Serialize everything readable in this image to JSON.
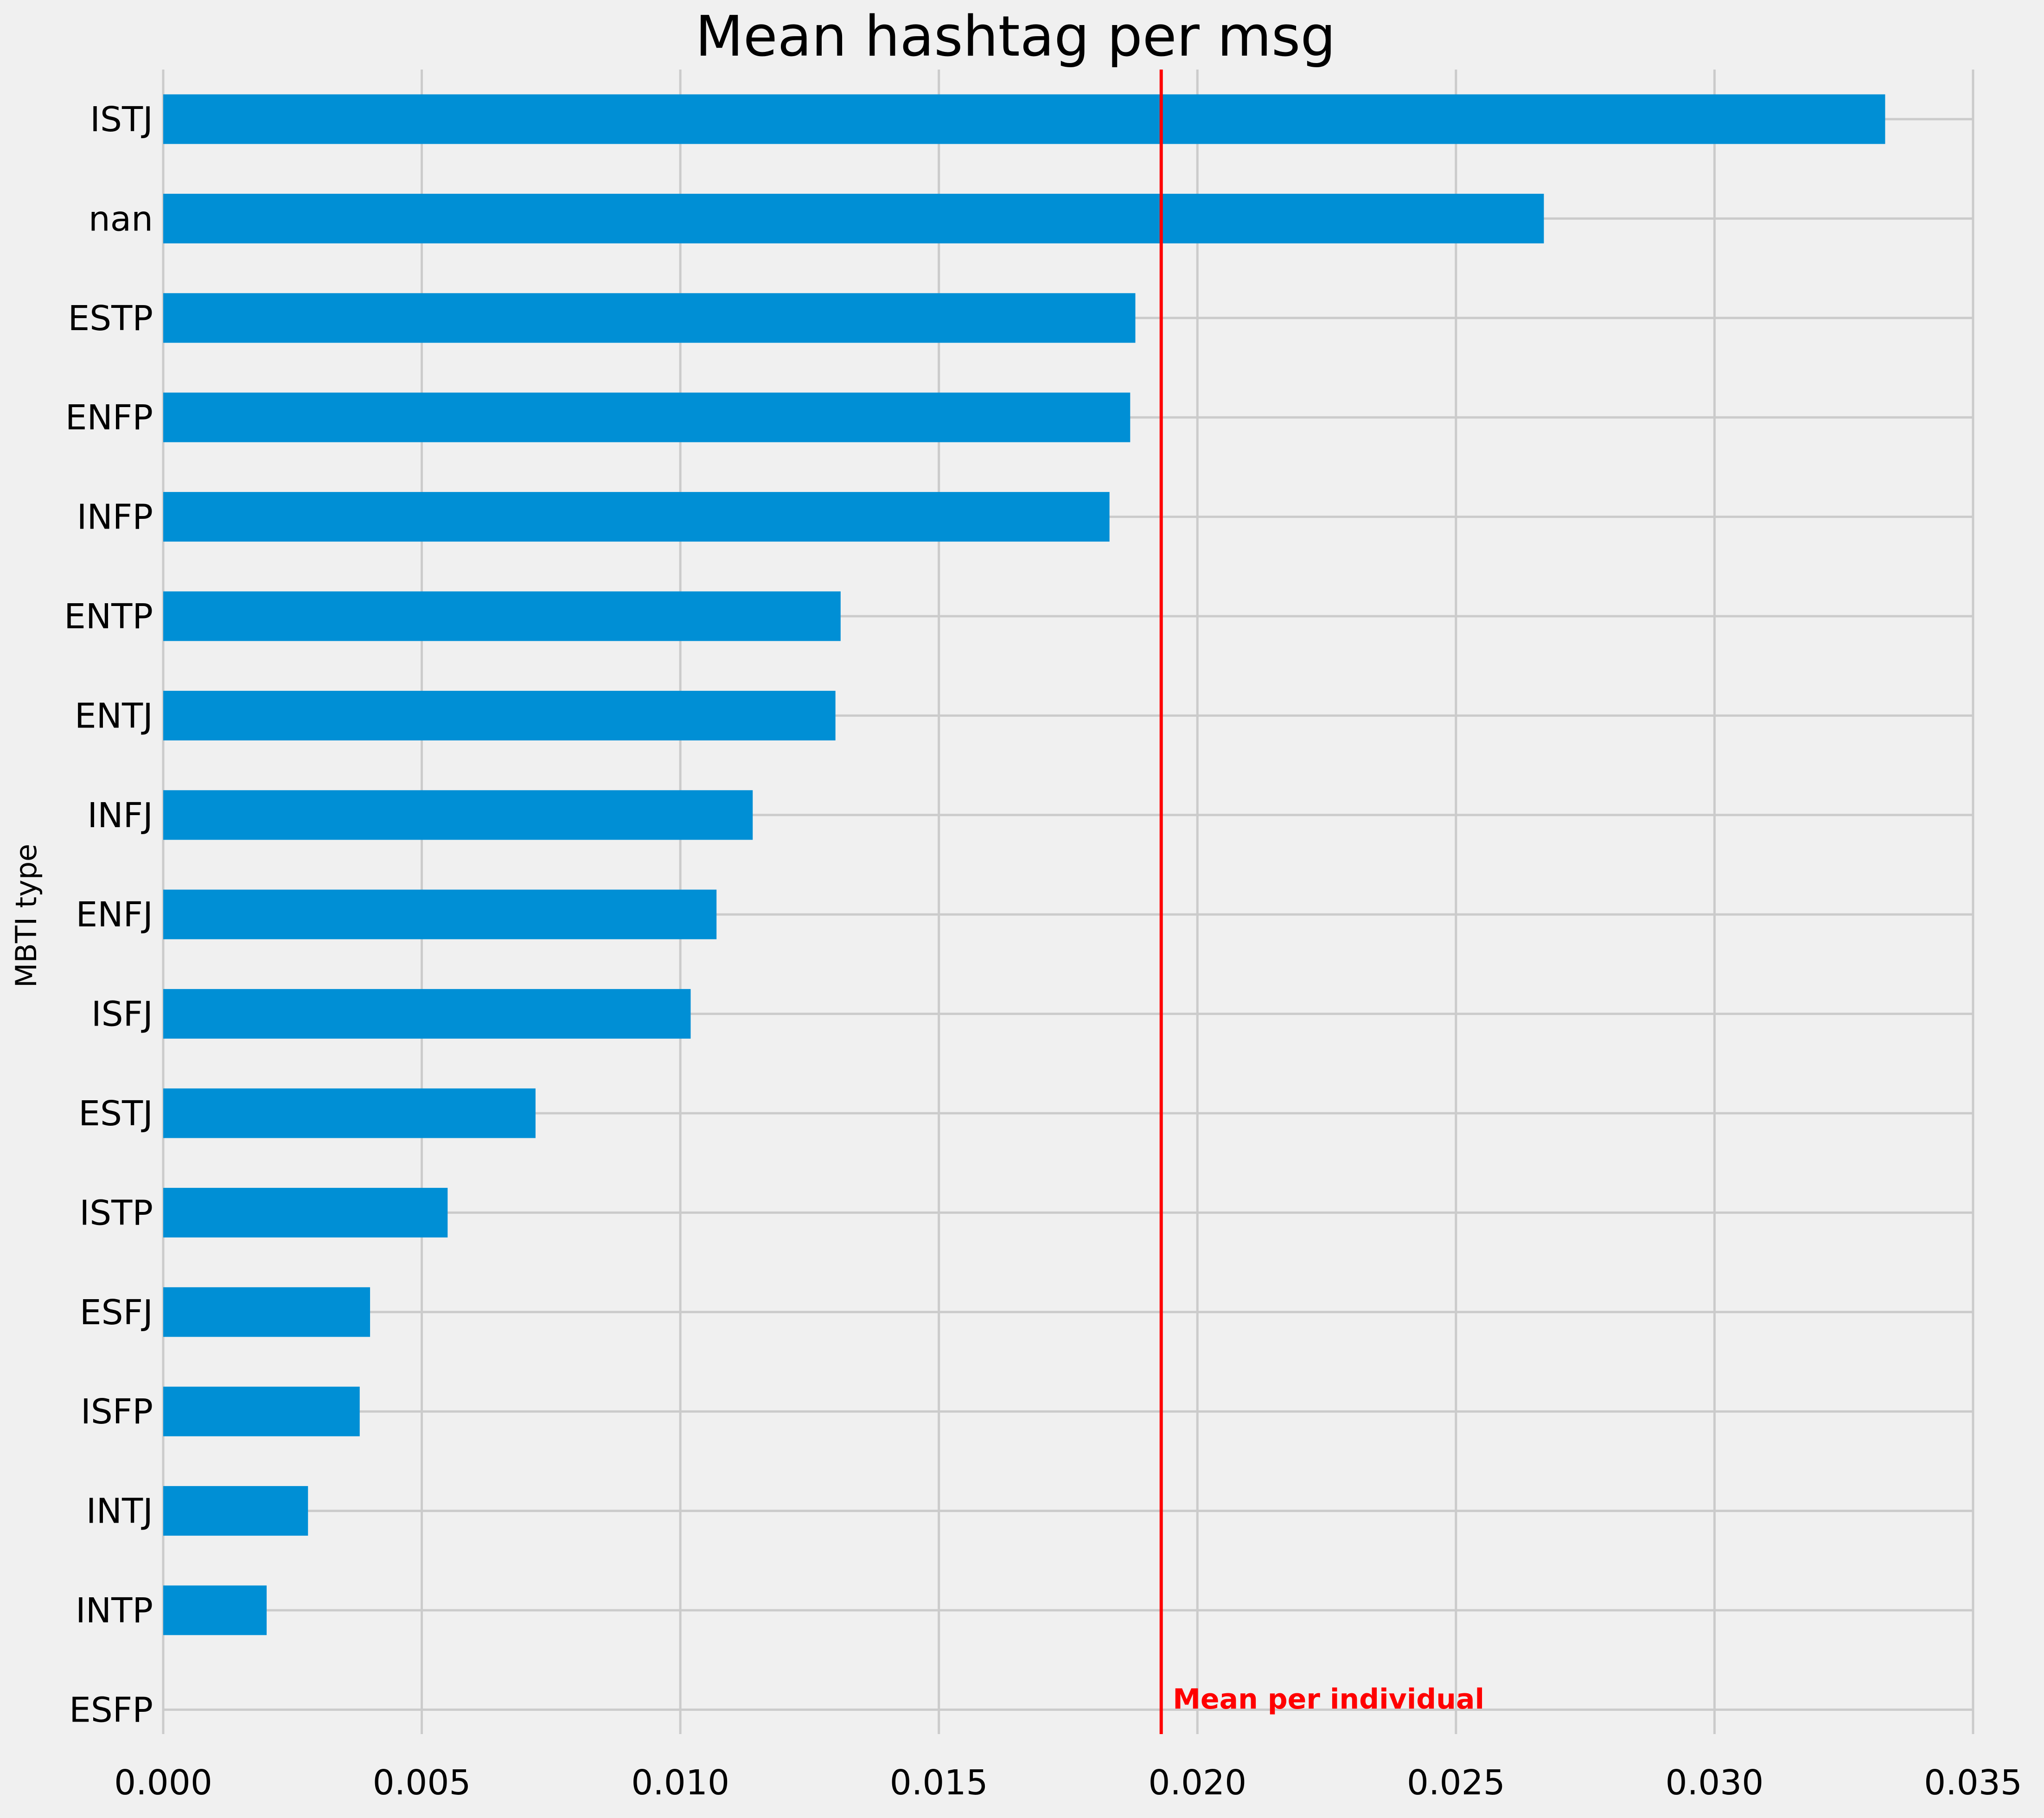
{
  "chart_data": {
    "type": "bar",
    "orientation": "horizontal",
    "title": "Mean hashtag per msg",
    "xlabel": "",
    "ylabel": "MBTI type",
    "categories": [
      "ISTJ",
      "nan",
      "ESTP",
      "ENFP",
      "INFP",
      "ENTP",
      "ENTJ",
      "INFJ",
      "ENFJ",
      "ISFJ",
      "ESTJ",
      "ISTP",
      "ESFJ",
      "ISFP",
      "INTJ",
      "INTP",
      "ESFP"
    ],
    "values": [
      0.0333,
      0.0267,
      0.0188,
      0.0187,
      0.0183,
      0.0131,
      0.013,
      0.0114,
      0.0107,
      0.0102,
      0.0072,
      0.0055,
      0.004,
      0.0038,
      0.0028,
      0.002,
      0.0
    ],
    "xlim": [
      0,
      0.035
    ],
    "xticks": [
      "0.000",
      "0.005",
      "0.010",
      "0.015",
      "0.020",
      "0.025",
      "0.030",
      "0.035"
    ],
    "grid": true,
    "bar_color": "#008fd5",
    "background_color": "#f0f0f0",
    "reference_line": {
      "value": 0.0193,
      "label": "Mean per individual",
      "color": "#ff0000"
    }
  }
}
